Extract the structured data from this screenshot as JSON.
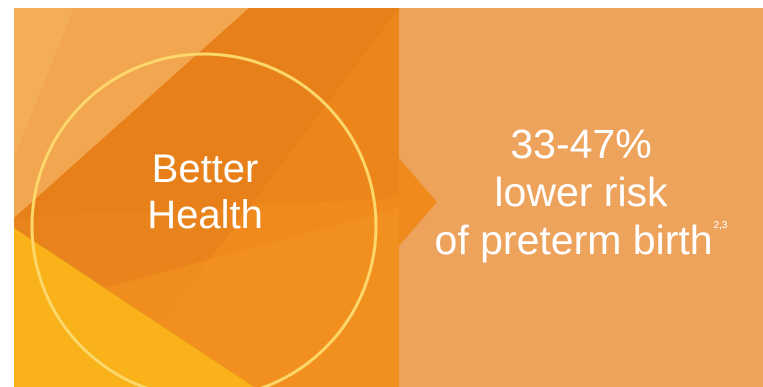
{
  "colors": {
    "left_base": "#f08a1d",
    "right_panel": "#eda35c",
    "circle_stroke": "#fcd76a",
    "shade_dark": "#e37b1a",
    "shade_light": "#f3ae57",
    "shade_yellow": "#f9b21a",
    "text": "#ffffff"
  },
  "left": {
    "heading_line1": "Better",
    "heading_line2": "Health",
    "shape_icon": "circle-outline"
  },
  "right": {
    "stat_range": "33-47%",
    "line2": "lower risk",
    "line3": "of preterm birth",
    "footnote_ref": "2,3"
  }
}
